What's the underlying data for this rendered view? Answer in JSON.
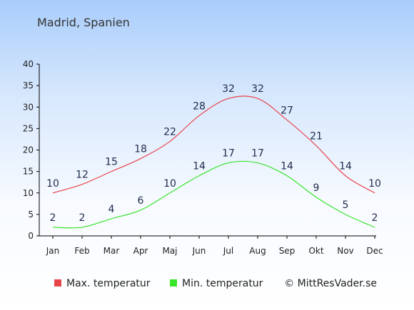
{
  "title": "Madrid, Spanien",
  "watermark": "© MittResVader.se",
  "chart_data": {
    "type": "line",
    "title": "Madrid, Spanien",
    "categories": [
      "Jan",
      "Feb",
      "Mar",
      "Apr",
      "Maj",
      "Jun",
      "Jul",
      "Aug",
      "Sep",
      "Okt",
      "Nov",
      "Dec"
    ],
    "yticks": [
      0,
      5,
      10,
      15,
      20,
      25,
      30,
      35,
      40
    ],
    "ylim": [
      0,
      40
    ],
    "grid": false,
    "legend_position": "bottom-left",
    "series": [
      {
        "name": "Max. temperatur",
        "values": [
          10,
          12,
          15,
          18,
          22,
          28,
          32,
          32,
          27,
          21,
          14,
          10
        ],
        "color": "#e8454a"
      },
      {
        "name": "Min. temperatur",
        "values": [
          2,
          2,
          4,
          6,
          10,
          14,
          17,
          17,
          14,
          9,
          5,
          2
        ],
        "color": "#37e52a"
      }
    ]
  }
}
